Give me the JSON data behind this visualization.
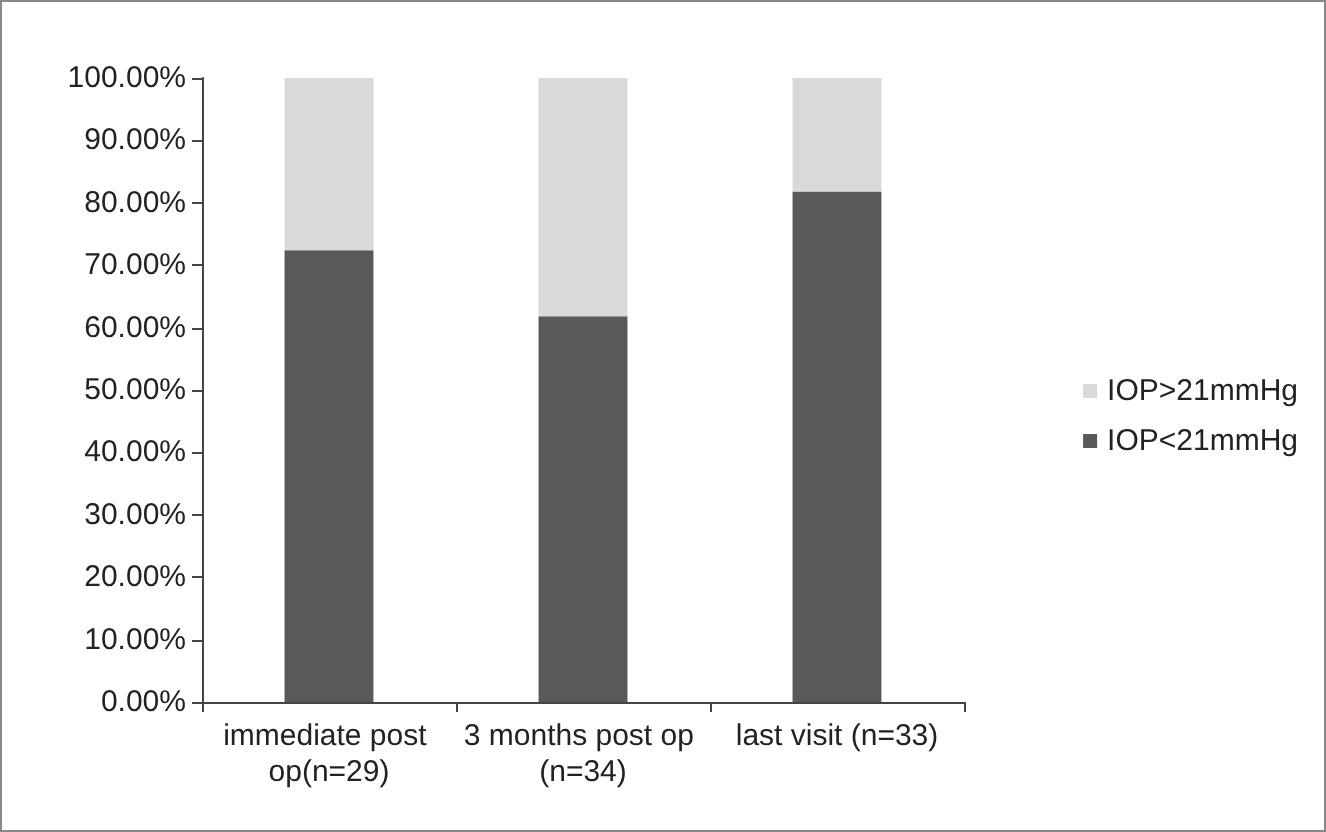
{
  "chart_data": {
    "type": "bar",
    "stacked": true,
    "categories": [
      "immediate post op(n=29)",
      "3 months post op (n=34)",
      "last visit (n=33)"
    ],
    "series": [
      {
        "name": "IOP<21mmHg",
        "color": "#595959",
        "values": [
          72.4,
          61.8,
          81.8
        ]
      },
      {
        "name": "IOP>21mmHg",
        "color": "#d9d9d9",
        "values": [
          27.6,
          38.2,
          18.2
        ]
      }
    ],
    "ylim": [
      0,
      100
    ],
    "yticks": [
      {
        "value": 0,
        "label": "0.00%"
      },
      {
        "value": 10,
        "label": "10.00%"
      },
      {
        "value": 20,
        "label": "20.00%"
      },
      {
        "value": 30,
        "label": "30.00%"
      },
      {
        "value": 40,
        "label": "40.00%"
      },
      {
        "value": 50,
        "label": "50.00%"
      },
      {
        "value": 60,
        "label": "60.00%"
      },
      {
        "value": 70,
        "label": "70.00%"
      },
      {
        "value": 80,
        "label": "80.00%"
      },
      {
        "value": 90,
        "label": "90.00%"
      },
      {
        "value": 100,
        "label": "100.00%"
      }
    ],
    "grid": false,
    "legend": "right"
  }
}
